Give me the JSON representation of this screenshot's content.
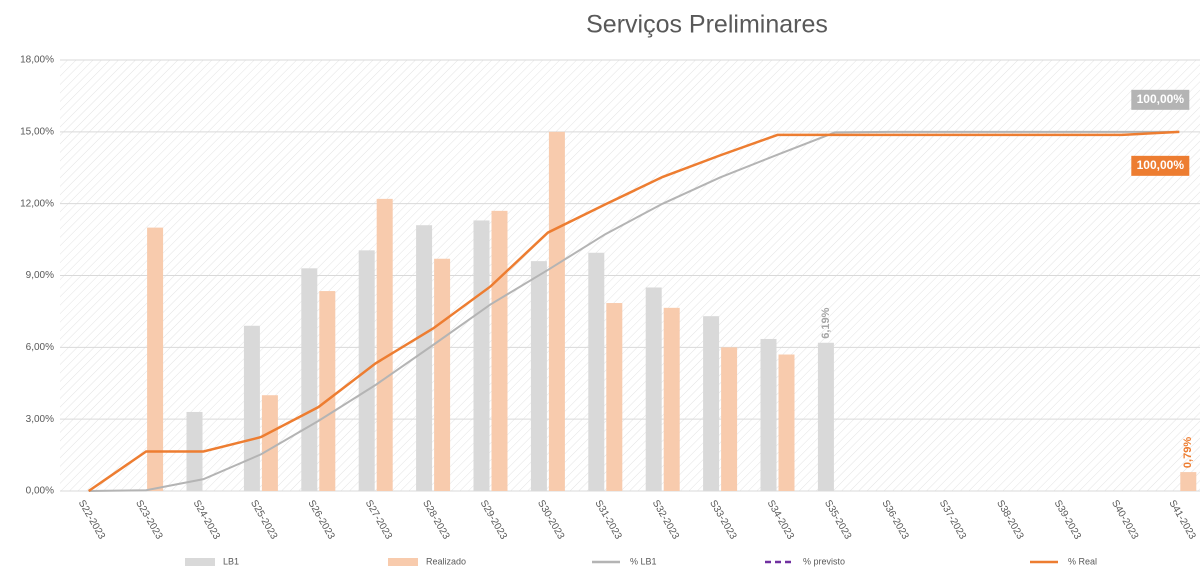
{
  "chart_data": {
    "type": "bar_line",
    "title": "Serviços Preliminares",
    "categories": [
      "S22-2023",
      "S23-2023",
      "S24-2023",
      "S25-2023",
      "S26-2023",
      "S27-2023",
      "S28-2023",
      "S29-2023",
      "S30-2023",
      "S31-2023",
      "S32-2023",
      "S33-2023",
      "S34-2023",
      "S35-2023",
      "S36-2023",
      "S37-2023",
      "S38-2023",
      "S39-2023",
      "S40-2023",
      "S41-2023"
    ],
    "series": [
      {
        "name": "LB1",
        "kind": "bar",
        "color": "#d9d9d9",
        "values": [
          0,
          0,
          3.3,
          6.9,
          9.3,
          10.05,
          11.1,
          11.3,
          9.6,
          9.95,
          8.5,
          7.3,
          6.35,
          6.19,
          null,
          null,
          null,
          null,
          null,
          null
        ],
        "value_labels": [
          null,
          null,
          null,
          null,
          null,
          null,
          null,
          null,
          null,
          null,
          null,
          null,
          null,
          "6,19%",
          null,
          null,
          null,
          null,
          null,
          null
        ]
      },
      {
        "name": "Realizado",
        "kind": "bar",
        "color": "#f8cbad",
        "values": [
          null,
          11,
          null,
          4,
          8.35,
          12.2,
          9.7,
          11.7,
          15,
          7.85,
          7.65,
          6,
          5.7,
          null,
          null,
          null,
          null,
          null,
          null,
          0.79
        ],
        "value_labels": [
          null,
          null,
          null,
          null,
          null,
          null,
          null,
          null,
          null,
          null,
          null,
          null,
          null,
          null,
          null,
          null,
          null,
          null,
          null,
          "0,79%"
        ]
      },
      {
        "name": "% LB1",
        "kind": "line",
        "axis": "y2",
        "color": "#b4b4b4",
        "values": [
          0,
          0.2,
          3.3,
          10.2,
          19.5,
          29.55,
          40.65,
          51.95,
          61.55,
          71.5,
          80,
          87.3,
          93.65,
          99.84,
          100,
          100,
          100,
          100,
          100,
          100
        ],
        "value_labels": [
          null,
          null,
          null,
          null,
          null,
          null,
          null,
          null,
          null,
          null,
          null,
          null,
          null,
          null,
          null,
          null,
          null,
          null,
          null,
          "100,00%"
        ]
      },
      {
        "name": "% previsto",
        "kind": "line",
        "axis": "y2",
        "color": "#7030a0",
        "dashed": true,
        "values": [
          null,
          null,
          null,
          null,
          null,
          null,
          null,
          null,
          null,
          null,
          null,
          null,
          null,
          null,
          null,
          null,
          null,
          null,
          null,
          null
        ]
      },
      {
        "name": "% Real",
        "kind": "line",
        "axis": "y2",
        "color": "#ed7d31",
        "values": [
          0,
          11,
          11,
          15,
          23.35,
          35.55,
          45.25,
          56.95,
          71.95,
          79.8,
          87.45,
          93.45,
          99.15,
          99.15,
          99.15,
          99.15,
          99.15,
          99.15,
          99.15,
          100
        ],
        "value_labels": [
          null,
          null,
          null,
          null,
          null,
          null,
          null,
          null,
          null,
          null,
          null,
          null,
          null,
          null,
          null,
          null,
          null,
          null,
          null,
          "100,00%"
        ]
      }
    ],
    "ylim": [
      0,
      18
    ],
    "yticks": [
      {
        "value": 0,
        "label": "0,00%"
      },
      {
        "value": 3,
        "label": "3,00%"
      },
      {
        "value": 6,
        "label": "6,00%"
      },
      {
        "value": 9,
        "label": "9,00%"
      },
      {
        "value": 12,
        "label": "12,00%"
      },
      {
        "value": 15,
        "label": "15,00%"
      },
      {
        "value": 18,
        "label": "18,00%"
      }
    ],
    "y2lim": [
      0,
      120
    ],
    "grid": true
  }
}
